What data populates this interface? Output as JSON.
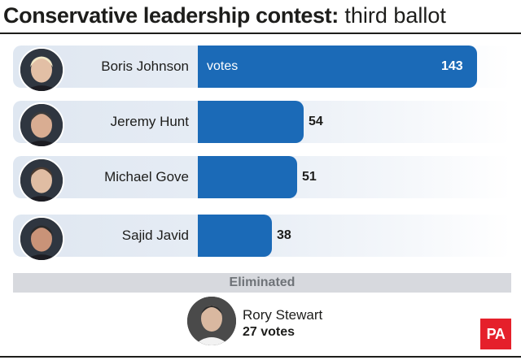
{
  "header": {
    "title_bold": "Conservative leadership contest:",
    "title_light": " third ballot"
  },
  "chart_data": {
    "type": "bar",
    "orientation": "horizontal",
    "title": "Conservative leadership contest: third ballot",
    "categories": [
      "Boris Johnson",
      "Jeremy Hunt",
      "Michael Gove",
      "Sajid Javid"
    ],
    "values": [
      143,
      54,
      51,
      38
    ],
    "value_unit_label": "votes",
    "bar_color": "#1b6ab7"
  },
  "eliminated": {
    "heading": "Eliminated",
    "name": "Rory Stewart",
    "votes_label": "27 votes"
  },
  "logo": {
    "text": "PA",
    "color": "#e5202b"
  }
}
